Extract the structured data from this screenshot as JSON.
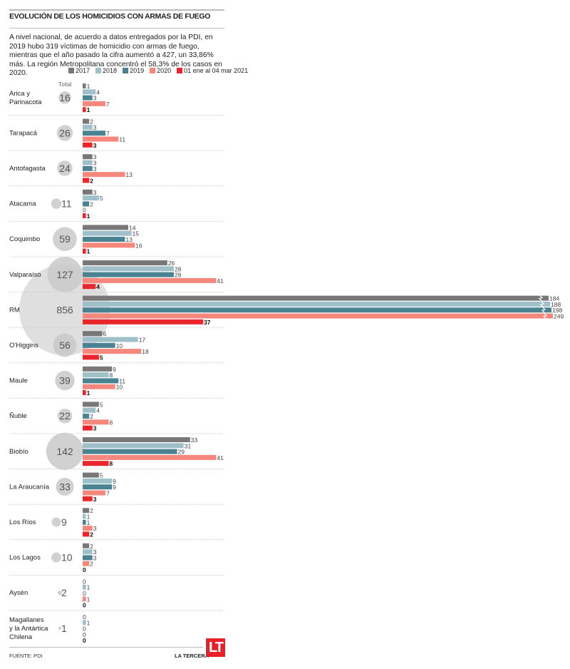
{
  "title": "EVOLUCIÓN DE LOS HOMICIDIOS CON ARMAS DE FUEGO",
  "intro": "A nivel nacional, de acuerdo a datos entregados por la PDI, en 2019 hubo 319 víctimas de homicidio con armas de fuego, mientras que el año pasado la cifra aumentó a 427, un 33,86% más. La región Metropolitana concentró el 58,3% de los casos en 2020.",
  "total_label": "Total",
  "source": "FUENTE: PDI",
  "brand": "LA TERCERA",
  "logo_text": "LT",
  "chart_data": {
    "type": "bar",
    "orientation": "horizontal",
    "title": "EVOLUCIÓN DE LOS HOMICIDIOS CON ARMAS DE FUEGO",
    "series": [
      {
        "name": "2017",
        "color": "#7a7778"
      },
      {
        "name": "2018",
        "color": "#9fc0c8"
      },
      {
        "name": "2019",
        "color": "#4b8291"
      },
      {
        "name": "2020",
        "color": "#f6877d"
      },
      {
        "name": "01 ene al 04 mar 2021",
        "color": "#e8262c"
      }
    ],
    "axis_break_note": "RM bars truncated",
    "regions": [
      {
        "name": "Arica y Parinacota",
        "total": 16,
        "values": [
          1,
          4,
          3,
          7,
          1
        ]
      },
      {
        "name": "Tarapacá",
        "total": 26,
        "values": [
          2,
          3,
          7,
          11,
          3
        ]
      },
      {
        "name": "Antofagasta",
        "total": 24,
        "values": [
          3,
          3,
          3,
          13,
          2
        ]
      },
      {
        "name": "Atacama",
        "total": 11,
        "values": [
          3,
          5,
          2,
          0,
          1
        ]
      },
      {
        "name": "Coquimbo",
        "total": 59,
        "values": [
          14,
          15,
          13,
          16,
          1
        ]
      },
      {
        "name": "Valparaíso",
        "total": 127,
        "values": [
          26,
          28,
          28,
          41,
          4
        ]
      },
      {
        "name": "RM",
        "total": 856,
        "values": [
          184,
          188,
          198,
          249,
          37
        ]
      },
      {
        "name": "O'Higgins",
        "total": 56,
        "values": [
          6,
          17,
          10,
          18,
          5
        ]
      },
      {
        "name": "Maule",
        "total": 39,
        "values": [
          9,
          8,
          11,
          10,
          1
        ]
      },
      {
        "name": "Ñuble",
        "total": 22,
        "values": [
          5,
          4,
          2,
          8,
          3
        ]
      },
      {
        "name": "Biobío",
        "total": 142,
        "values": [
          33,
          31,
          29,
          41,
          8
        ]
      },
      {
        "name": "La Araucanía",
        "total": 33,
        "values": [
          5,
          9,
          9,
          7,
          3
        ]
      },
      {
        "name": "Los Ríos",
        "total": 9,
        "values": [
          2,
          1,
          1,
          3,
          2
        ]
      },
      {
        "name": "Los Lagos",
        "total": 10,
        "values": [
          2,
          3,
          3,
          2,
          0
        ]
      },
      {
        "name": "Aysén",
        "total": 2,
        "values": [
          0,
          1,
          0,
          1,
          0
        ]
      },
      {
        "name": "Magallanes y la Antártica Chilena",
        "total": 1,
        "values": [
          0,
          1,
          0,
          0,
          0
        ]
      }
    ]
  }
}
